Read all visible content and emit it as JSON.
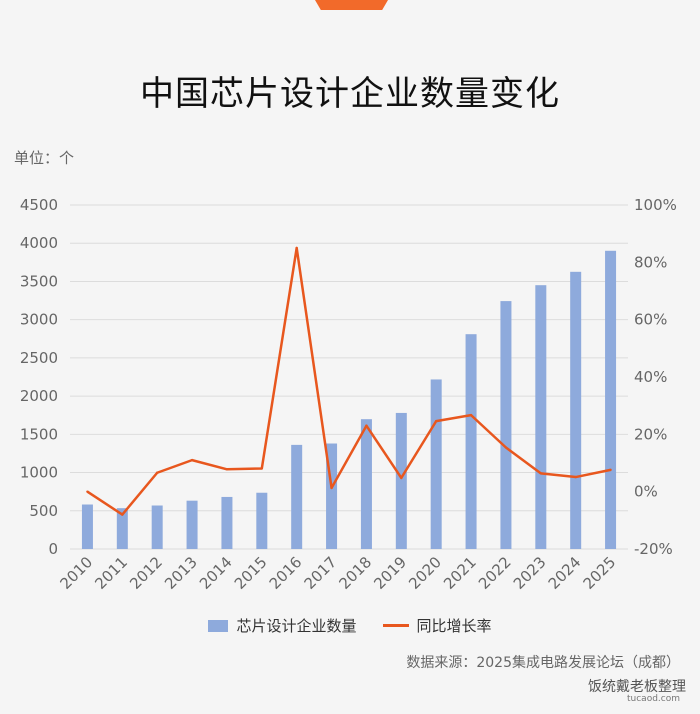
{
  "header": {
    "title": "中国芯片设计企业数量变化",
    "unit": "单位：个"
  },
  "footer": {
    "source": "数据来源：2025集成电路发展论坛（成都）",
    "watermark": "饭统戴老板整理",
    "watermark_sub": "tucaod.com"
  },
  "colors": {
    "bar": "#8eaadc",
    "line": "#e8571e",
    "grid": "#dcdcdc",
    "axis_text": "#666666"
  },
  "chart_data": {
    "type": "bar",
    "categories": [
      "2010",
      "2011",
      "2012",
      "2013",
      "2014",
      "2015",
      "2016",
      "2017",
      "2018",
      "2019",
      "2020",
      "2021",
      "2022",
      "2023",
      "2024",
      "2025"
    ],
    "series": [
      {
        "name": "芯片设计企业数量",
        "type": "bar",
        "axis": "left",
        "values": [
          582,
          534,
          569,
          632,
          681,
          736,
          1362,
          1380,
          1698,
          1780,
          2218,
          2810,
          3243,
          3451,
          3626,
          3901
        ]
      },
      {
        "name": "同比增长率",
        "type": "line",
        "axis": "right",
        "values": [
          0,
          -8,
          6.6,
          11,
          7.8,
          8.1,
          85,
          1.3,
          23,
          4.8,
          24.6,
          26.7,
          15.4,
          6.4,
          5.1,
          7.6
        ]
      }
    ],
    "y_left": {
      "min": 0,
      "max": 4500,
      "ticks": [
        "0",
        "500",
        "1000",
        "1500",
        "2000",
        "2500",
        "3000",
        "3500",
        "4000",
        "4500"
      ]
    },
    "y_right": {
      "min": -20,
      "max": 100,
      "ticks": [
        "-20%",
        "0%",
        "20%",
        "40%",
        "60%",
        "80%",
        "100%"
      ]
    },
    "grid": true,
    "legend_position": "bottom"
  }
}
